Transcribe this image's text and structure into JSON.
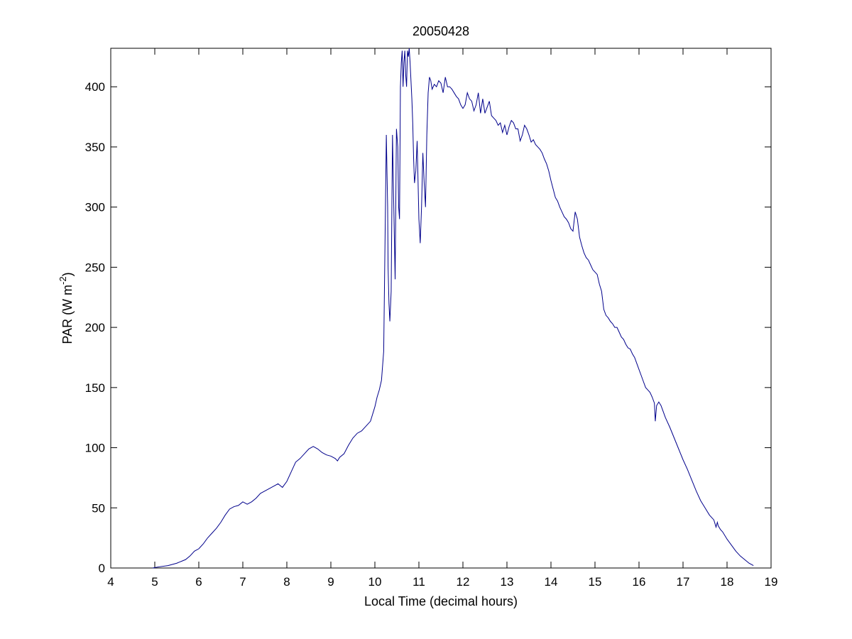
{
  "chart_data": {
    "type": "line",
    "title": "20050428",
    "xlabel": "Local Time (decimal hours)",
    "ylabel": {
      "base": "PAR (W m",
      "superscript": "-2",
      "suffix": ")"
    },
    "xlim": [
      4,
      19
    ],
    "ylim": [
      0,
      432
    ],
    "xticks": [
      4,
      5,
      6,
      7,
      8,
      9,
      10,
      11,
      12,
      13,
      14,
      15,
      16,
      17,
      18,
      19
    ],
    "yticks": [
      0,
      50,
      100,
      150,
      200,
      250,
      300,
      350,
      400
    ],
    "grid": false,
    "line_color": "#00008b",
    "series": [
      {
        "x": [
          4.95,
          5.1,
          5.3,
          5.5,
          5.7,
          5.8,
          5.9,
          6.0,
          6.1,
          6.2,
          6.3,
          6.4,
          6.5,
          6.6,
          6.7,
          6.8,
          6.9,
          7.0,
          7.1,
          7.2,
          7.3,
          7.4,
          7.5,
          7.6,
          7.7,
          7.8,
          7.9,
          8.0,
          8.1,
          8.2,
          8.3,
          8.4,
          8.5,
          8.6,
          8.7,
          8.8,
          8.9,
          9.0,
          9.1,
          9.15,
          9.2,
          9.3,
          9.4,
          9.5,
          9.6,
          9.7,
          9.8,
          9.9,
          10.0,
          10.05,
          10.1,
          10.15,
          10.2,
          10.23,
          10.26,
          10.29,
          10.3,
          10.32,
          10.34,
          10.37,
          10.4,
          10.43,
          10.46,
          10.49,
          10.52,
          10.54,
          10.56,
          10.58,
          10.6,
          10.62,
          10.64,
          10.66,
          10.68,
          10.7,
          10.72,
          10.74,
          10.76,
          10.78,
          10.8,
          10.82,
          10.84,
          10.86,
          10.88,
          10.9,
          10.93,
          10.96,
          11.0,
          11.03,
          11.06,
          11.09,
          11.12,
          11.15,
          11.18,
          11.21,
          11.24,
          11.27,
          11.3,
          11.35,
          11.4,
          11.45,
          11.5,
          11.55,
          11.6,
          11.65,
          11.7,
          11.75,
          11.8,
          11.85,
          11.9,
          11.95,
          12.0,
          12.05,
          12.1,
          12.15,
          12.2,
          12.25,
          12.3,
          12.35,
          12.4,
          12.45,
          12.5,
          12.55,
          12.6,
          12.65,
          12.7,
          12.75,
          12.8,
          12.85,
          12.9,
          12.95,
          13.0,
          13.05,
          13.1,
          13.15,
          13.2,
          13.25,
          13.3,
          13.35,
          13.4,
          13.45,
          13.5,
          13.55,
          13.6,
          13.65,
          13.7,
          13.75,
          13.8,
          13.85,
          13.9,
          13.95,
          14.0,
          14.05,
          14.1,
          14.15,
          14.2,
          14.25,
          14.3,
          14.35,
          14.4,
          14.45,
          14.5,
          14.55,
          14.6,
          14.65,
          14.7,
          14.75,
          14.8,
          14.85,
          14.9,
          14.95,
          15.0,
          15.05,
          15.1,
          15.15,
          15.2,
          15.25,
          15.3,
          15.35,
          15.4,
          15.45,
          15.5,
          15.55,
          15.6,
          15.65,
          15.7,
          15.75,
          15.8,
          15.85,
          15.9,
          15.95,
          16.0,
          16.05,
          16.1,
          16.15,
          16.2,
          16.25,
          16.3,
          16.35,
          16.37,
          16.4,
          16.45,
          16.5,
          16.55,
          16.6,
          16.7,
          16.8,
          16.9,
          17.0,
          17.1,
          17.2,
          17.3,
          17.4,
          17.5,
          17.6,
          17.7,
          17.75,
          17.78,
          17.8,
          17.85,
          17.9,
          18.0,
          18.1,
          18.2,
          18.3,
          18.4,
          18.5,
          18.6
        ],
        "y": [
          0,
          1,
          2,
          4,
          7,
          10,
          14,
          16,
          20,
          25,
          29,
          33,
          38,
          44,
          49,
          51,
          52,
          55,
          53,
          55,
          58,
          62,
          64,
          66,
          68,
          70,
          67,
          72,
          80,
          88,
          91,
          95,
          99,
          101,
          99,
          96,
          94,
          93,
          91,
          89,
          92,
          95,
          102,
          108,
          112,
          114,
          118,
          122,
          134,
          142,
          148,
          156,
          180,
          270,
          360,
          300,
          250,
          220,
          205,
          230,
          360,
          300,
          240,
          365,
          350,
          300,
          290,
          400,
          420,
          430,
          400,
          420,
          430,
          410,
          400,
          430,
          425,
          432,
          420,
          405,
          390,
          370,
          340,
          320,
          330,
          355,
          290,
          270,
          300,
          345,
          320,
          300,
          360,
          395,
          408,
          405,
          398,
          402,
          400,
          405,
          403,
          395,
          408,
          400,
          400,
          398,
          395,
          392,
          390,
          385,
          382,
          385,
          395,
          390,
          388,
          380,
          385,
          395,
          378,
          390,
          378,
          383,
          388,
          376,
          374,
          372,
          368,
          370,
          362,
          368,
          360,
          367,
          372,
          370,
          365,
          365,
          355,
          360,
          368,
          365,
          360,
          354,
          356,
          352,
          350,
          348,
          345,
          340,
          336,
          330,
          322,
          315,
          308,
          305,
          300,
          296,
          292,
          290,
          287,
          282,
          280,
          296,
          290,
          275,
          268,
          262,
          258,
          256,
          252,
          248,
          246,
          244,
          236,
          230,
          215,
          210,
          208,
          205,
          203,
          200,
          200,
          196,
          192,
          190,
          186,
          183,
          182,
          178,
          175,
          170,
          165,
          160,
          155,
          150,
          148,
          146,
          142,
          137,
          122,
          135,
          138,
          135,
          130,
          125,
          117,
          108,
          99,
          90,
          82,
          73,
          64,
          56,
          50,
          44,
          40,
          34,
          38,
          35,
          32,
          30,
          24,
          19,
          14,
          10,
          7,
          4,
          2
        ]
      }
    ]
  }
}
